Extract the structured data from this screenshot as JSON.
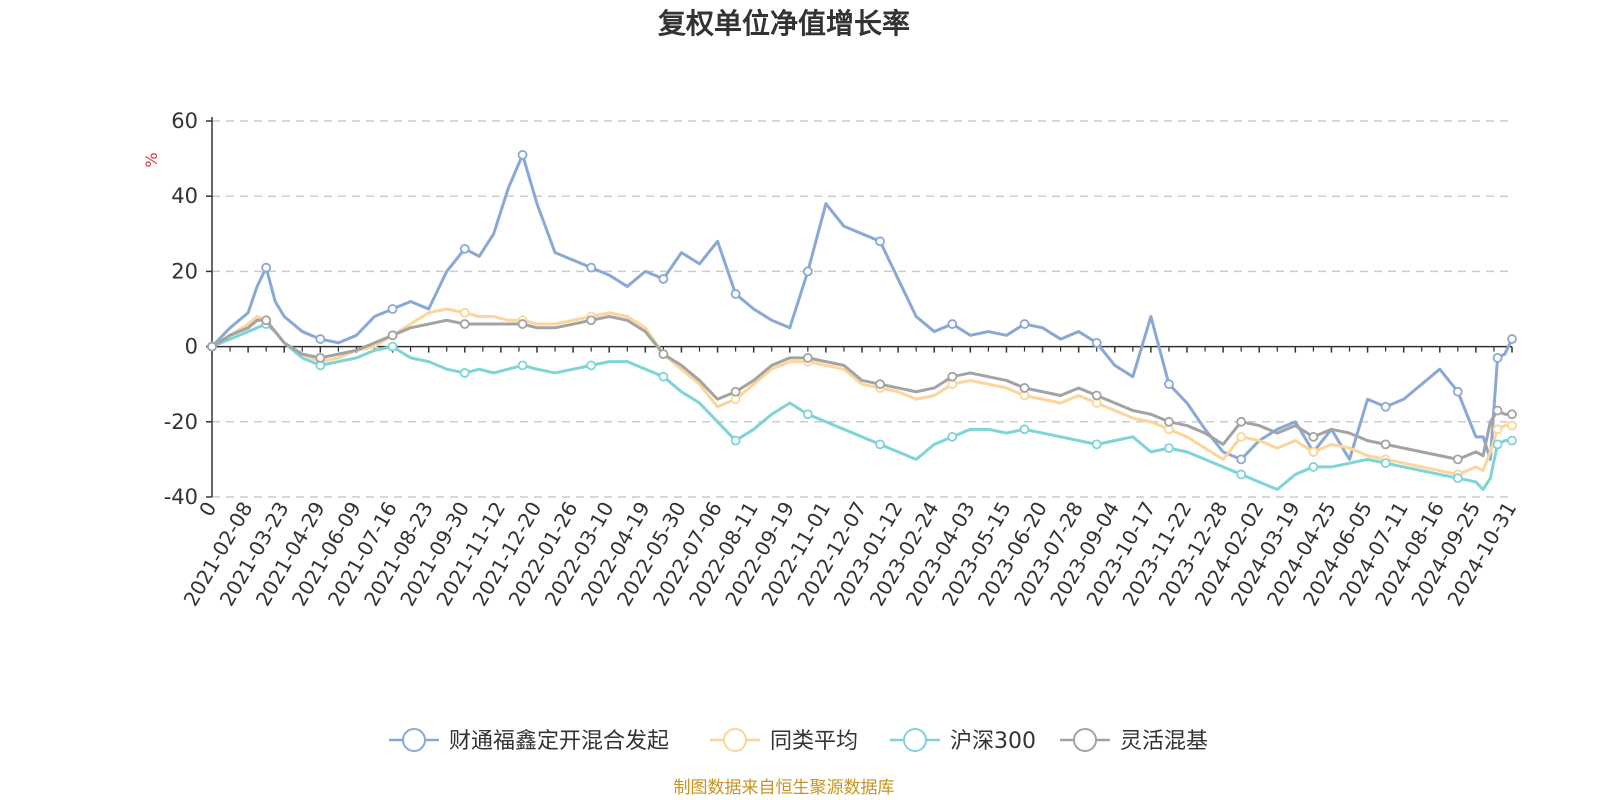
{
  "chart_data": {
    "type": "line",
    "title": "复权单位净值增长率",
    "ylabel": "%",
    "ylim": [
      -40,
      60
    ],
    "yticks": [
      60,
      40,
      20,
      0,
      -20,
      -40
    ],
    "grid": true,
    "legend_position": "bottom",
    "source": "制图数据来自恒生聚源数据库",
    "x_tick_labels": [
      "0",
      "2021-02-08",
      "2021-03-23",
      "2021-04-29",
      "2021-06-09",
      "2021-07-16",
      "2021-08-23",
      "2021-09-30",
      "2021-11-12",
      "2021-12-20",
      "2022-01-26",
      "2022-03-10",
      "2022-04-19",
      "2022-05-30",
      "2022-07-06",
      "2022-08-11",
      "2022-09-19",
      "2022-11-01",
      "2022-12-07",
      "2023-01-12",
      "2023-02-24",
      "2023-04-03",
      "2023-05-15",
      "2023-06-20",
      "2023-07-28",
      "2023-09-04",
      "2023-10-17",
      "2023-11-22",
      "2023-12-28",
      "2024-02-02",
      "2024-03-19",
      "2024-04-25",
      "2024-06-05",
      "2024-07-11",
      "2024-08-16",
      "2024-09-25",
      "2024-10-31"
    ],
    "x": [
      0,
      0.5,
      1,
      1.25,
      1.5,
      1.75,
      2,
      2.5,
      3,
      3.5,
      4,
      4.5,
      5,
      5.5,
      6,
      6.5,
      7,
      7.4,
      7.8,
      8.2,
      8.6,
      9,
      9.5,
      10,
      10.5,
      11,
      11.5,
      12,
      12.5,
      13,
      13.5,
      14,
      14.5,
      15,
      15.5,
      16,
      16.5,
      17,
      17.5,
      18,
      18.5,
      19,
      19.5,
      20,
      20.5,
      21,
      21.5,
      22,
      22.5,
      23,
      23.5,
      24,
      24.5,
      25,
      25.5,
      26,
      26.5,
      27,
      27.5,
      28,
      28.5,
      29,
      29.5,
      30,
      30.5,
      31,
      31.5,
      32,
      32.5,
      33,
      33.5,
      34,
      34.5,
      35,
      35.2,
      35.4,
      35.6,
      35.8,
      36
    ],
    "series": [
      {
        "name": "财通福鑫定开混合发起",
        "color": "#8aa8d6",
        "values": [
          0,
          5,
          9,
          16,
          21,
          12,
          8,
          4,
          2,
          1,
          3,
          8,
          10,
          12,
          10,
          20,
          26,
          24,
          30,
          42,
          51,
          38,
          25,
          23,
          21,
          19,
          16,
          20,
          18,
          25,
          22,
          28,
          14,
          10,
          7,
          5,
          20,
          38,
          32,
          30,
          28,
          18,
          8,
          4,
          6,
          3,
          4,
          3,
          6,
          5,
          2,
          4,
          1,
          -5,
          -8,
          8,
          -10,
          -15,
          -22,
          -28,
          -30,
          -25,
          -22,
          -20,
          -28,
          -22,
          -30,
          -14,
          -16,
          -14,
          -10,
          -6,
          -12,
          -24,
          -24,
          -30,
          -3,
          -2,
          2
        ]
      },
      {
        "name": "同类平均",
        "color": "#fdd59a",
        "values": [
          0,
          3,
          6,
          8,
          7,
          4,
          1,
          -2,
          -4,
          -3,
          -1,
          0,
          3,
          6,
          9,
          10,
          9,
          8,
          8,
          7,
          7,
          6,
          6,
          7,
          8,
          9,
          8,
          5,
          -2,
          -6,
          -10,
          -16,
          -14,
          -10,
          -6,
          -4,
          -4,
          -5,
          -6,
          -10,
          -11,
          -12,
          -14,
          -13,
          -10,
          -9,
          -10,
          -11,
          -13,
          -14,
          -15,
          -13,
          -15,
          -17,
          -19,
          -20,
          -22,
          -24,
          -27,
          -30,
          -24,
          -25,
          -27,
          -25,
          -28,
          -26,
          -27,
          -29,
          -30,
          -31,
          -32,
          -33,
          -34,
          -32,
          -33,
          -28,
          -22,
          -21,
          -21
        ]
      },
      {
        "name": "沪深300",
        "color": "#7ed4d6",
        "values": [
          0,
          2,
          4,
          5,
          6,
          4,
          1,
          -3,
          -5,
          -4,
          -3,
          -1,
          0,
          -3,
          -4,
          -6,
          -7,
          -6,
          -7,
          -6,
          -5,
          -6,
          -7,
          -6,
          -5,
          -4,
          -4,
          -6,
          -8,
          -12,
          -15,
          -20,
          -25,
          -22,
          -18,
          -15,
          -18,
          -20,
          -22,
          -24,
          -26,
          -28,
          -30,
          -26,
          -24,
          -22,
          -22,
          -23,
          -22,
          -23,
          -24,
          -25,
          -26,
          -25,
          -24,
          -28,
          -27,
          -28,
          -30,
          -32,
          -34,
          -36,
          -38,
          -34,
          -32,
          -32,
          -31,
          -30,
          -31,
          -32,
          -33,
          -34,
          -35,
          -36,
          -38,
          -35,
          -26,
          -25,
          -25
        ]
      },
      {
        "name": "灵活混基",
        "color": "#a3a3a3",
        "values": [
          0,
          3,
          5,
          7,
          7,
          4,
          1,
          -2,
          -3,
          -2,
          -1,
          1,
          3,
          5,
          6,
          7,
          6,
          6,
          6,
          6,
          6,
          5,
          5,
          6,
          7,
          8,
          7,
          4,
          -2,
          -5,
          -9,
          -14,
          -12,
          -9,
          -5,
          -3,
          -3,
          -4,
          -5,
          -9,
          -10,
          -11,
          -12,
          -11,
          -8,
          -7,
          -8,
          -9,
          -11,
          -12,
          -13,
          -11,
          -13,
          -15,
          -17,
          -18,
          -20,
          -21,
          -23,
          -26,
          -20,
          -21,
          -23,
          -21,
          -24,
          -22,
          -23,
          -25,
          -26,
          -27,
          -28,
          -29,
          -30,
          -28,
          -29,
          -20,
          -17,
          -18,
          -18
        ]
      }
    ]
  }
}
